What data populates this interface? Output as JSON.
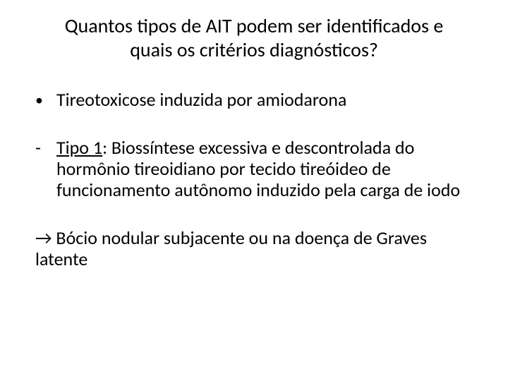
{
  "slide": {
    "title": "Quantos tipos de AIT podem ser identificados e quais os critérios diagnósticos?",
    "bullet": {
      "marker": "•",
      "text": "Tireotoxicose induzida por amiodarona"
    },
    "dash": {
      "marker": "-",
      "label": "Tipo 1",
      "text_after": ": Biossíntese excessiva e descontrolada do hormônio tireoidiano por tecido tireóideo de funcionamento autônomo induzido pela carga de iodo"
    },
    "arrow": {
      "symbol": "→",
      "text": "  Bócio nodular subjacente ou na doença de Graves latente"
    }
  },
  "styling": {
    "background_color": "#ffffff",
    "text_color": "#000000",
    "title_fontsize": 28,
    "body_fontsize": 26,
    "font_family": "Calibri"
  }
}
